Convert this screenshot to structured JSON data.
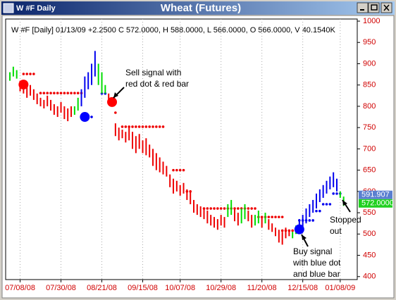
{
  "window": {
    "title": "W #F Daily",
    "chart_title": "Wheat (Futures)"
  },
  "chart_data": {
    "type": "bar-signals",
    "info": "W #F [Daily] 01/13/09 +2.2500 C 572.0000, H 588.0000, L 566.0000, O 566.0000, V 40.1540K",
    "xlim": [
      -1.25,
      102
    ],
    "xticks": [
      {
        "value": 3,
        "label": "07/08/08"
      },
      {
        "value": 15,
        "label": "07/30/08"
      },
      {
        "value": 27,
        "label": "08/21/08"
      },
      {
        "value": 39,
        "label": "09/15/08"
      },
      {
        "value": 50,
        "label": "10/07/08"
      },
      {
        "value": 62,
        "label": "10/29/08"
      },
      {
        "value": 74,
        "label": "11/20/08"
      },
      {
        "value": 86,
        "label": "12/15/08"
      },
      {
        "value": 97,
        "label": "01/08/09"
      }
    ],
    "ylim": [
      393,
      1005
    ],
    "yticks": [
      400,
      450,
      500,
      550,
      600,
      650,
      700,
      750,
      800,
      850,
      900,
      950,
      1000
    ],
    "grid": true,
    "bars": {
      "high": [
        880,
        893,
        885,
        860,
        855,
        845,
        850,
        840,
        830,
        820,
        815,
        825,
        815,
        805,
        800,
        810,
        800,
        795,
        800,
        800,
        820,
        840,
        870,
        880,
        900,
        930,
        900,
        880,
        850,
        830,
        815,
        760,
        750,
        745,
        740,
        750,
        740,
        730,
        735,
        720,
        725,
        710,
        700,
        690,
        680,
        670,
        660,
        640,
        630,
        625,
        615,
        620,
        605,
        600,
        580,
        570,
        565,
        560,
        555,
        545,
        540,
        535,
        545,
        540,
        570,
        580,
        560,
        550,
        560,
        570,
        555,
        545,
        545,
        555,
        540,
        550,
        535,
        525,
        515,
        510,
        505,
        515,
        510,
        505,
        520,
        535,
        545,
        560,
        570,
        580,
        595,
        605,
        615,
        625,
        635,
        645,
        630,
        600,
        588
      ],
      "low": [
        860,
        870,
        865,
        835,
        830,
        820,
        825,
        815,
        805,
        800,
        795,
        800,
        790,
        780,
        775,
        785,
        770,
        765,
        775,
        780,
        790,
        800,
        820,
        840,
        850,
        870,
        850,
        830,
        830,
        810,
        800,
        730,
        720,
        725,
        715,
        720,
        700,
        690,
        700,
        690,
        685,
        680,
        660,
        650,
        645,
        640,
        635,
        610,
        595,
        600,
        590,
        595,
        580,
        570,
        550,
        545,
        540,
        535,
        525,
        520,
        515,
        510,
        520,
        515,
        540,
        545,
        530,
        520,
        525,
        535,
        530,
        515,
        520,
        525,
        515,
        525,
        510,
        505,
        495,
        480,
        475,
        490,
        495,
        490,
        500,
        505,
        515,
        525,
        540,
        550,
        560,
        575,
        585,
        595,
        605,
        610,
        600,
        585,
        566
      ],
      "colors": [
        "#0d0",
        "#0d0",
        "#0d0",
        "#e00",
        "#e00",
        "#e00",
        "#e00",
        "#e00",
        "#e00",
        "#e00",
        "#e00",
        "#e00",
        "#e00",
        "#e00",
        "#e00",
        "#e00",
        "#e00",
        "#e00",
        "#e00",
        "#0d0",
        "#0d0",
        "#00e",
        "#00e",
        "#00e",
        "#00e",
        "#00e",
        "#0d0",
        "#0d0",
        "#0d0",
        "#e00",
        "#e00",
        "#e00",
        "#e00",
        "#e00",
        "#e00",
        "#e00",
        "#e00",
        "#e00",
        "#e00",
        "#e00",
        "#e00",
        "#e00",
        "#e00",
        "#e00",
        "#e00",
        "#e00",
        "#e00",
        "#e00",
        "#e00",
        "#e00",
        "#e00",
        "#e00",
        "#e00",
        "#e00",
        "#e00",
        "#e00",
        "#e00",
        "#e00",
        "#e00",
        "#e00",
        "#e00",
        "#e00",
        "#e00",
        "#e00",
        "#0d0",
        "#0d0",
        "#e00",
        "#e00",
        "#0d0",
        "#0d0",
        "#e00",
        "#e00",
        "#0d0",
        "#0d0",
        "#e00",
        "#0d0",
        "#e00",
        "#e00",
        "#e00",
        "#e00",
        "#e00",
        "#e00",
        "#e00",
        "#0d0",
        "#0d0",
        "#00e",
        "#00e",
        "#00e",
        "#00e",
        "#00e",
        "#00e",
        "#00e",
        "#00e",
        "#00e",
        "#00e",
        "#00e",
        "#00e",
        "#0d0",
        "#0d0"
      ]
    },
    "stops": [
      {
        "color": "#e00",
        "x": [
          4,
          5,
          6,
          7,
          9,
          10,
          11,
          12,
          13,
          14,
          15,
          16,
          17,
          18,
          19,
          20,
          21,
          31,
          33,
          34,
          35,
          36,
          37,
          38,
          39,
          40,
          41,
          42,
          43,
          44,
          45,
          48,
          49,
          50,
          51,
          52,
          53,
          57,
          58,
          59,
          60,
          61,
          62,
          63,
          64,
          65,
          66,
          67,
          68,
          69,
          70,
          71,
          72,
          73,
          74,
          75,
          76,
          77,
          78,
          79,
          80,
          80,
          81,
          82,
          83,
          84
        ],
        "values": [
          876,
          876,
          876,
          876,
          831,
          831,
          831,
          831,
          831,
          831,
          831,
          831,
          831,
          831,
          831,
          831,
          831,
          785,
          752,
          752,
          752,
          752,
          752,
          752,
          752,
          752,
          752,
          752,
          752,
          752,
          752,
          650,
          650,
          650,
          650,
          600,
          600,
          560,
          560,
          560,
          560,
          560,
          560,
          560,
          560,
          560,
          560,
          560,
          560,
          560,
          560,
          560,
          560,
          540,
          540,
          540,
          540,
          540,
          540,
          540,
          540,
          508,
          508,
          508,
          508,
          508
        ]
      },
      {
        "color": "#00e",
        "x": [
          22,
          23,
          24,
          27,
          28,
          85,
          86,
          87,
          88,
          89,
          90,
          91,
          92,
          93,
          94,
          95,
          96,
          97
        ],
        "values": [
          775,
          775,
          775,
          830,
          830,
          532,
          532,
          532,
          532,
          532,
          554,
          554,
          570,
          570,
          570,
          595,
          595,
          595
        ]
      }
    ],
    "signals": [
      {
        "color": "#f00",
        "x": [
          4,
          30
        ],
        "values": [
          851,
          810
        ]
      },
      {
        "color": "#00f",
        "x": [
          22,
          85
        ],
        "values": [
          775,
          511
        ]
      }
    ],
    "price_tags": [
      {
        "value": 591.907,
        "color": "#5a7fd0"
      },
      {
        "value": 572,
        "label": "572.0000",
        "color": "#20d020"
      }
    ],
    "annotations": [
      {
        "lines": [
          "Sell signal with",
          "red dot & red bar"
        ]
      },
      {
        "lines": [
          "Buy signal",
          "with blue dot",
          "and blue bar"
        ]
      },
      {
        "lines": [
          "Stopped",
          "out"
        ]
      }
    ]
  }
}
